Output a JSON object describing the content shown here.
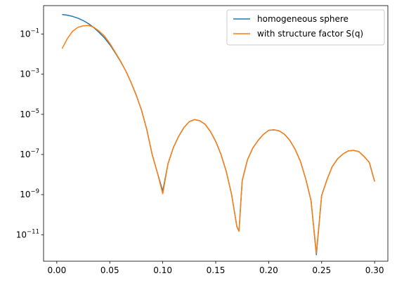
{
  "chart_data": {
    "type": "line",
    "title": "",
    "xlabel": "",
    "ylabel": "",
    "xlim": [
      -0.0125,
      0.3125
    ],
    "ylim": [
      1e-12,
      1
    ],
    "y_scale": "log",
    "grid": false,
    "legend_position": "top-right",
    "x_ticks": [
      "0.00",
      "0.05",
      "0.10",
      "0.15",
      "0.20",
      "0.25",
      "0.30"
    ],
    "y_ticks": [
      "10^-11",
      "10^-9",
      "10^-7",
      "10^-5",
      "10^-3",
      "10^-1"
    ],
    "series": [
      {
        "name": "homogeneous sphere",
        "color": "#1f77b4",
        "x": [
          0.005,
          0.01,
          0.015,
          0.02,
          0.025,
          0.03,
          0.035,
          0.04,
          0.045,
          0.05,
          0.055,
          0.06,
          0.065,
          0.07,
          0.075,
          0.08,
          0.085,
          0.09,
          0.095,
          0.1,
          0.105,
          0.11,
          0.115,
          0.12,
          0.125,
          0.13,
          0.135,
          0.14,
          0.145,
          0.15,
          0.155,
          0.16,
          0.165,
          0.17,
          0.172,
          0.175,
          0.18,
          0.185,
          0.19,
          0.195,
          0.2,
          0.205,
          0.21,
          0.215,
          0.22,
          0.225,
          0.23,
          0.235,
          0.24,
          0.245,
          0.25,
          0.255,
          0.26,
          0.265,
          0.27,
          0.275,
          0.28,
          0.285,
          0.29,
          0.295,
          0.3
        ],
        "y": [
          0.95,
          0.88,
          0.76,
          0.62,
          0.47,
          0.33,
          0.21,
          0.12,
          0.065,
          0.03,
          0.012,
          0.0045,
          0.0015,
          0.0004,
          9e-05,
          1.6e-05,
          1.7e-06,
          1e-07,
          1.2e-08,
          1.5e-09,
          3.5e-08,
          2.2e-07,
          8e-07,
          2.2e-06,
          4.3e-06,
          5.5e-06,
          4.8e-06,
          3.2e-06,
          1.4e-06,
          4.5e-07,
          1e-07,
          1.4e-08,
          1e-09,
          2.5e-11,
          1.5e-11,
          5e-09,
          5.5e-08,
          2.1e-07,
          5e-07,
          1e-06,
          1.6e-06,
          1.7e-06,
          1.5e-06,
          1e-06,
          5e-07,
          1.8e-07,
          4.5e-08,
          6e-09,
          5e-10,
          1e-12,
          9e-10,
          5.5e-09,
          2.5e-08,
          6e-08,
          1.05e-07,
          1.5e-07,
          1.6e-07,
          1.4e-07,
          8e-08,
          4e-08,
          4.5e-09
        ]
      },
      {
        "name": "with structure factor S(q)",
        "color": "#ff7f0e",
        "x": [
          0.005,
          0.01,
          0.015,
          0.02,
          0.025,
          0.03,
          0.035,
          0.04,
          0.045,
          0.05,
          0.055,
          0.06,
          0.065,
          0.07,
          0.075,
          0.08,
          0.085,
          0.09,
          0.095,
          0.1,
          0.105,
          0.11,
          0.115,
          0.12,
          0.125,
          0.13,
          0.135,
          0.14,
          0.145,
          0.15,
          0.155,
          0.16,
          0.165,
          0.17,
          0.172,
          0.175,
          0.18,
          0.185,
          0.19,
          0.195,
          0.2,
          0.205,
          0.21,
          0.215,
          0.22,
          0.225,
          0.23,
          0.235,
          0.24,
          0.245,
          0.25,
          0.255,
          0.26,
          0.265,
          0.27,
          0.275,
          0.28,
          0.285,
          0.29,
          0.295,
          0.3
        ],
        "y": [
          0.019,
          0.06,
          0.14,
          0.22,
          0.26,
          0.27,
          0.22,
          0.14,
          0.08,
          0.035,
          0.013,
          0.0047,
          0.0015,
          0.0004,
          9e-05,
          1.6e-05,
          1.7e-06,
          1e-07,
          1.2e-08,
          1.1e-09,
          3.5e-08,
          2.2e-07,
          8e-07,
          2.2e-06,
          4.3e-06,
          5.5e-06,
          4.8e-06,
          3.2e-06,
          1.4e-06,
          4.5e-07,
          1e-07,
          1.4e-08,
          1e-09,
          2.5e-11,
          1.5e-11,
          5e-09,
          5.5e-08,
          2.1e-07,
          5e-07,
          1e-06,
          1.6e-06,
          1.7e-06,
          1.5e-06,
          1e-06,
          5e-07,
          1.8e-07,
          4.5e-08,
          6e-09,
          5e-10,
          1.2e-12,
          9e-10,
          5.5e-09,
          2.5e-08,
          6e-08,
          1.05e-07,
          1.5e-07,
          1.6e-07,
          1.4e-07,
          8e-08,
          4e-08,
          4.5e-09
        ]
      }
    ]
  }
}
